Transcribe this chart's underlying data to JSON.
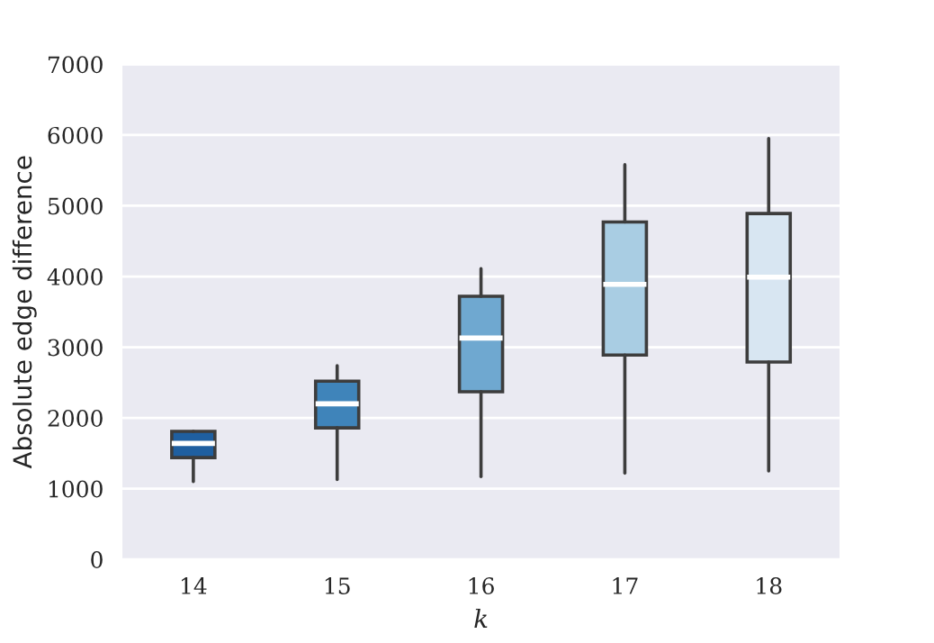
{
  "chart_data": {
    "type": "box",
    "xlabel": "k",
    "ylabel": "Absolute edge difference",
    "categories": [
      "14",
      "15",
      "16",
      "17",
      "18"
    ],
    "colors": [
      "#1f5fa0",
      "#3f84ba",
      "#6fa8d0",
      "#a9cde3",
      "#d8e6f2"
    ],
    "boxes": [
      {
        "low": 1100,
        "q1": 1440,
        "median": 1640,
        "q3": 1810,
        "high": 1810
      },
      {
        "low": 1130,
        "q1": 1860,
        "median": 2200,
        "q3": 2520,
        "high": 2740
      },
      {
        "low": 1170,
        "q1": 2370,
        "median": 3130,
        "q3": 3720,
        "high": 4110
      },
      {
        "low": 1220,
        "q1": 2890,
        "median": 3890,
        "q3": 4770,
        "high": 5580
      },
      {
        "low": 1250,
        "q1": 2790,
        "median": 3990,
        "q3": 4890,
        "high": 5950
      }
    ],
    "ylim": [
      0,
      7000
    ],
    "yticks": [
      0,
      1000,
      2000,
      3000,
      4000,
      5000,
      6000,
      7000
    ],
    "grid": "y"
  }
}
